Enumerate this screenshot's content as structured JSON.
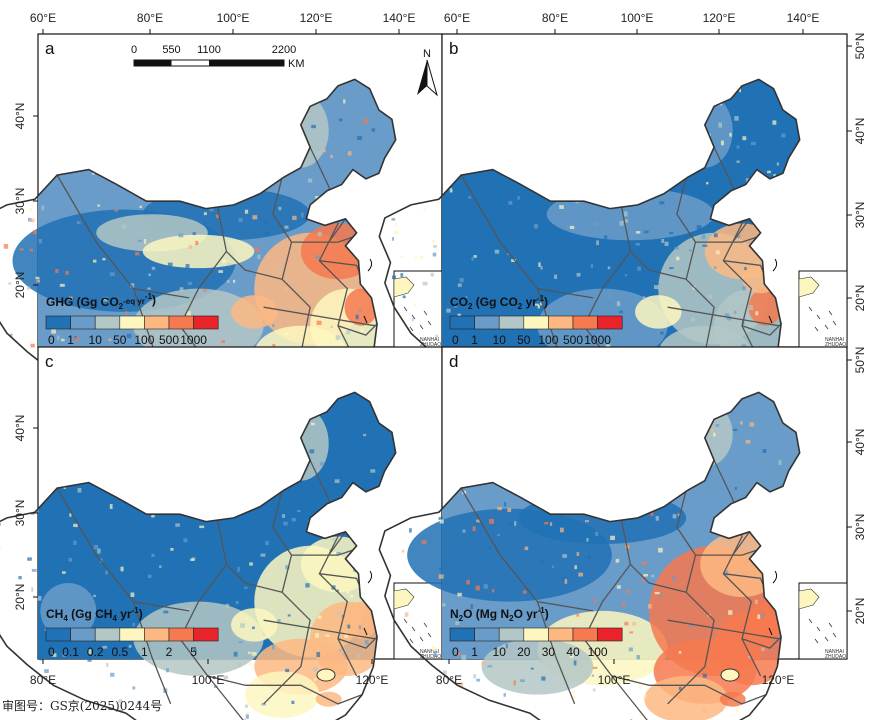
{
  "panels": [
    {
      "letter": "a",
      "legend_parts": [
        "GHG (Gg CO",
        "2",
        "-eq yr",
        "-1",
        ")"
      ],
      "legend_labels": [
        "0",
        "1",
        "10",
        "50",
        "100",
        "500",
        "1000"
      ],
      "pattern": "ghg"
    },
    {
      "letter": "b",
      "legend_parts": [
        "CO",
        "2",
        " (Gg CO",
        "2",
        " yr",
        "-1",
        ")"
      ],
      "legend_labels": [
        "0",
        "1",
        "10",
        "50",
        "100",
        "500",
        "1000"
      ],
      "pattern": "co2"
    },
    {
      "letter": "c",
      "legend_parts": [
        "CH",
        "4",
        " (Gg CH",
        "4",
        " yr",
        "-1",
        ")"
      ],
      "legend_labels": [
        "0",
        "0.1",
        "0.2",
        "0.5",
        "1",
        "2",
        "5"
      ],
      "pattern": "ch4"
    },
    {
      "letter": "d",
      "legend_parts": [
        "N",
        "2",
        "O (Mg N",
        "2",
        "O yr",
        "-1",
        ")"
      ],
      "legend_labels": [
        "0",
        "1",
        "10",
        "20",
        "30",
        "40",
        "100"
      ],
      "pattern": "n2o"
    }
  ],
  "legend_colors": [
    "#2171b5",
    "#6a9cc9",
    "#b3c7c6",
    "#fdf7bf",
    "#fdb882",
    "#f6794f",
    "#e8242a"
  ],
  "axes": {
    "top_lon": [
      "60°E",
      "80°E",
      "100°E",
      "120°E",
      "140°E"
    ],
    "bottom_lon": [
      "80°E",
      "100°E",
      "120°E"
    ],
    "lat_upper": [
      "40°N",
      "30°N",
      "20°N"
    ],
    "lat_lower": [
      "40°N",
      "30°N",
      "20°N"
    ],
    "right_lat_upper": [
      "50°N",
      "40°N",
      "30°N",
      "20°N"
    ],
    "right_lat_lower": [
      "50°N",
      "40°N",
      "30°N",
      "20°N"
    ]
  },
  "scale_bar": {
    "labels": [
      "0",
      "550",
      "1100",
      "2200"
    ],
    "unit": "KM"
  },
  "north_arrow": "N",
  "inset_label": [
    "NANHAI",
    "ZHUDAO"
  ],
  "approval_text": "审图号：GS京(2025)0244号"
}
